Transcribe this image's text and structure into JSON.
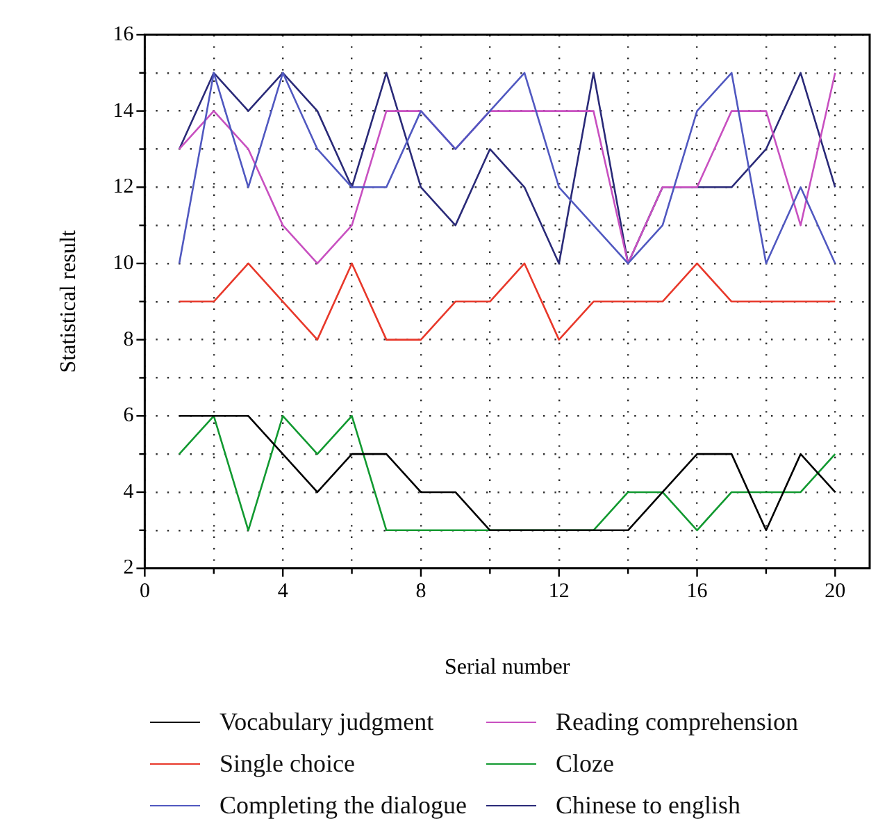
{
  "chart_data": {
    "type": "line",
    "xlabel": "Serial number",
    "ylabel": "Statistical result",
    "x": [
      1,
      2,
      3,
      4,
      5,
      6,
      7,
      8,
      9,
      10,
      11,
      12,
      13,
      14,
      15,
      16,
      17,
      18,
      19,
      20
    ],
    "xlim": [
      0,
      21
    ],
    "ylim": [
      2,
      16
    ],
    "xticks": [
      0,
      {
        "value": 2,
        "label": null
      },
      4,
      {
        "value": 6,
        "label": null
      },
      8,
      {
        "value": 10,
        "label": null
      },
      12,
      {
        "value": 14,
        "label": null
      },
      16,
      {
        "value": 18,
        "label": null
      },
      20
    ],
    "yticks": [
      2,
      {
        "value": 3,
        "label": null
      },
      4,
      {
        "value": 5,
        "label": null
      },
      6,
      {
        "value": 7,
        "label": null
      },
      8,
      {
        "value": 9,
        "label": null
      },
      10,
      {
        "value": 11,
        "label": null
      },
      12,
      {
        "value": 13,
        "label": null
      },
      14,
      {
        "value": 15,
        "label": null
      },
      16
    ],
    "grid": true,
    "legend": "bottom",
    "marker": "none",
    "line_style": "solid",
    "series": [
      {
        "name": "Vocabulary judgment",
        "color": "#000000",
        "values": [
          6,
          6,
          6,
          5,
          4,
          5,
          5,
          4,
          4,
          3,
          3,
          3,
          3,
          3,
          4,
          5,
          5,
          3,
          5,
          4
        ]
      },
      {
        "name": "Single choice",
        "color": "#e8382a",
        "values": [
          9,
          9,
          10,
          9,
          8,
          10,
          8,
          8,
          9,
          9,
          10,
          8,
          9,
          9,
          9,
          10,
          9,
          9,
          9,
          9
        ]
      },
      {
        "name": "Completing the dialogue",
        "color": "#5058c0",
        "values": [
          10,
          15,
          12,
          15,
          13,
          12,
          12,
          14,
          13,
          14,
          15,
          12,
          11,
          10,
          11,
          14,
          15,
          10,
          12,
          10
        ]
      },
      {
        "name": "Reading comprehension",
        "color": "#c850c0",
        "values": [
          13,
          14,
          13,
          11,
          10,
          11,
          14,
          14,
          13,
          14,
          14,
          14,
          14,
          10,
          12,
          12,
          14,
          14,
          11,
          15
        ]
      },
      {
        "name": "Cloze",
        "color": "#119930",
        "values": [
          5,
          6,
          3,
          6,
          5,
          6,
          3,
          3,
          3,
          3,
          3,
          3,
          3,
          4,
          4,
          3,
          4,
          4,
          4,
          5
        ]
      },
      {
        "name": "Chinese to english",
        "color": "#2a2a78",
        "values": [
          13,
          15,
          14,
          15,
          14,
          12,
          15,
          12,
          11,
          13,
          12,
          10,
          15,
          10,
          12,
          12,
          12,
          13,
          15,
          12
        ]
      }
    ]
  }
}
